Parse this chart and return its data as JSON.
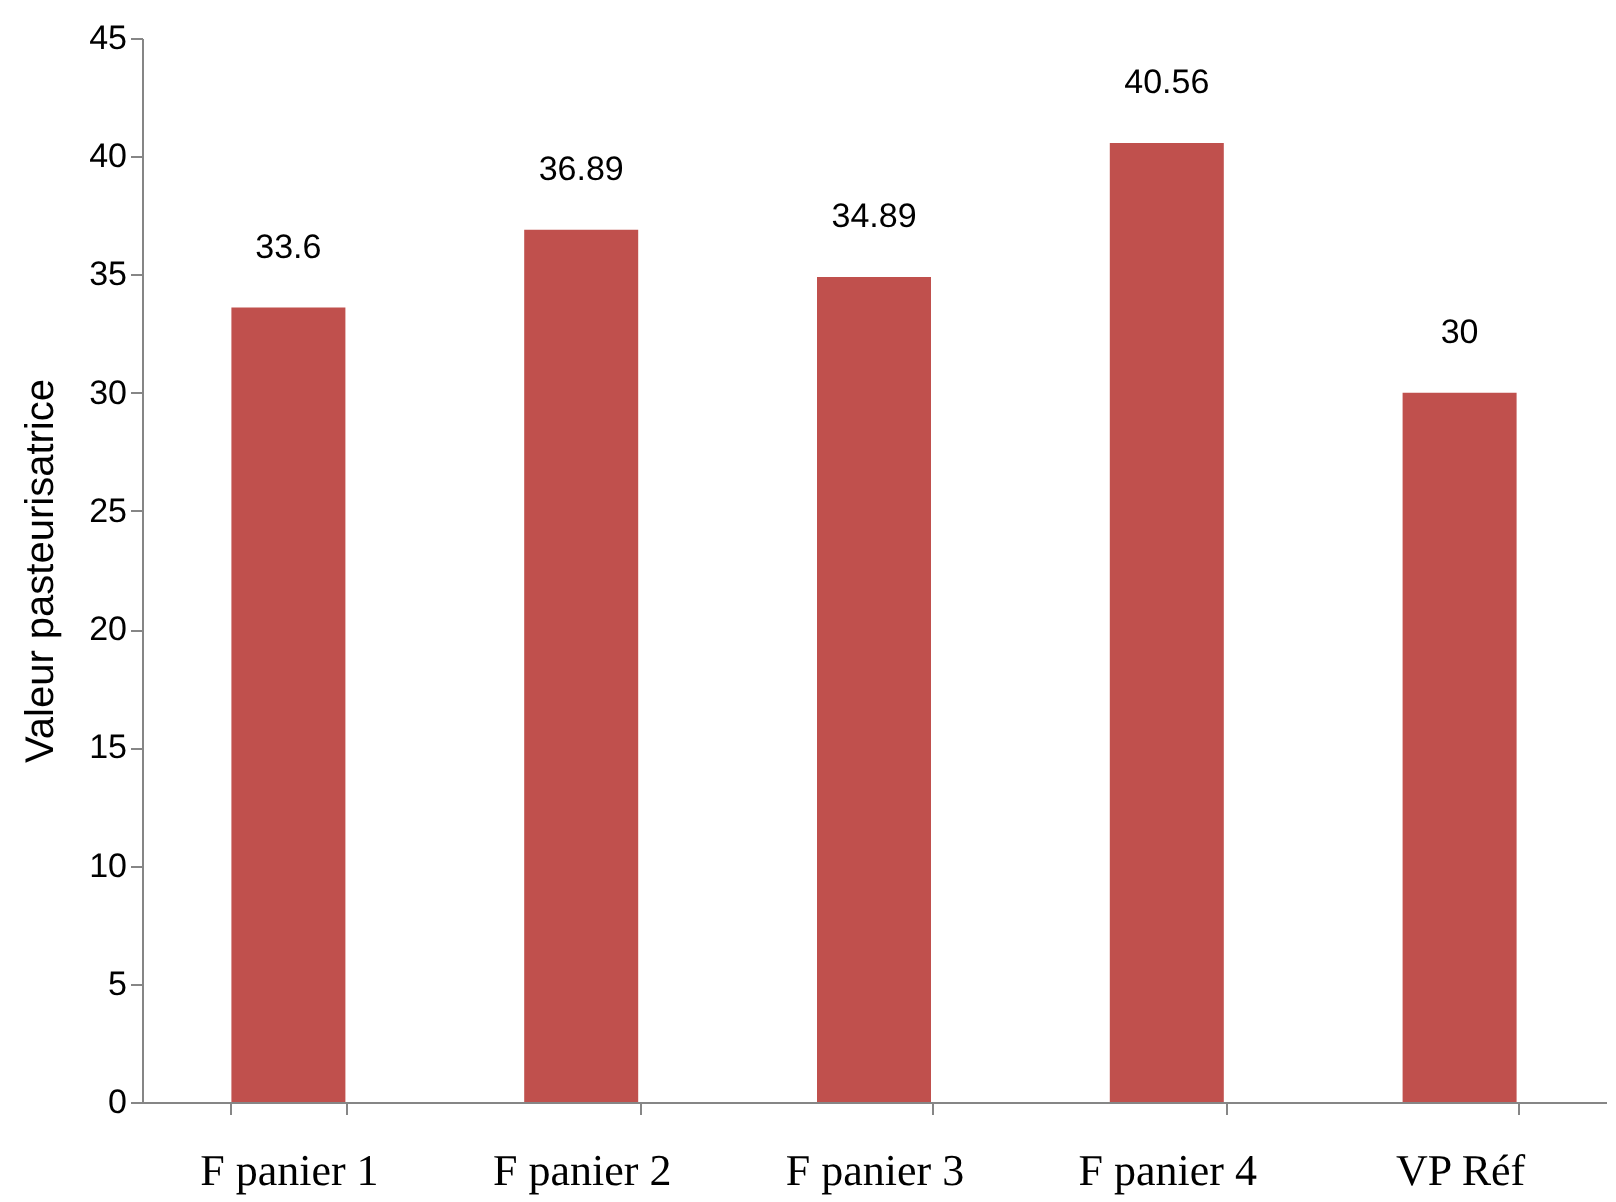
{
  "chart_data": {
    "type": "bar",
    "ylabel": "Valeur pasteurisatrice",
    "categories": [
      "F panier 1",
      "F panier 2",
      "F panier 3",
      "F panier 4",
      "VP Réf"
    ],
    "values": [
      33.6,
      36.89,
      34.89,
      40.56,
      30
    ],
    "color": "#c0504d",
    "ylim": [
      0,
      45
    ],
    "yticks": [
      0,
      5,
      10,
      15,
      20,
      25,
      30,
      35,
      40,
      45
    ],
    "grid": false,
    "data_labels": true
  }
}
